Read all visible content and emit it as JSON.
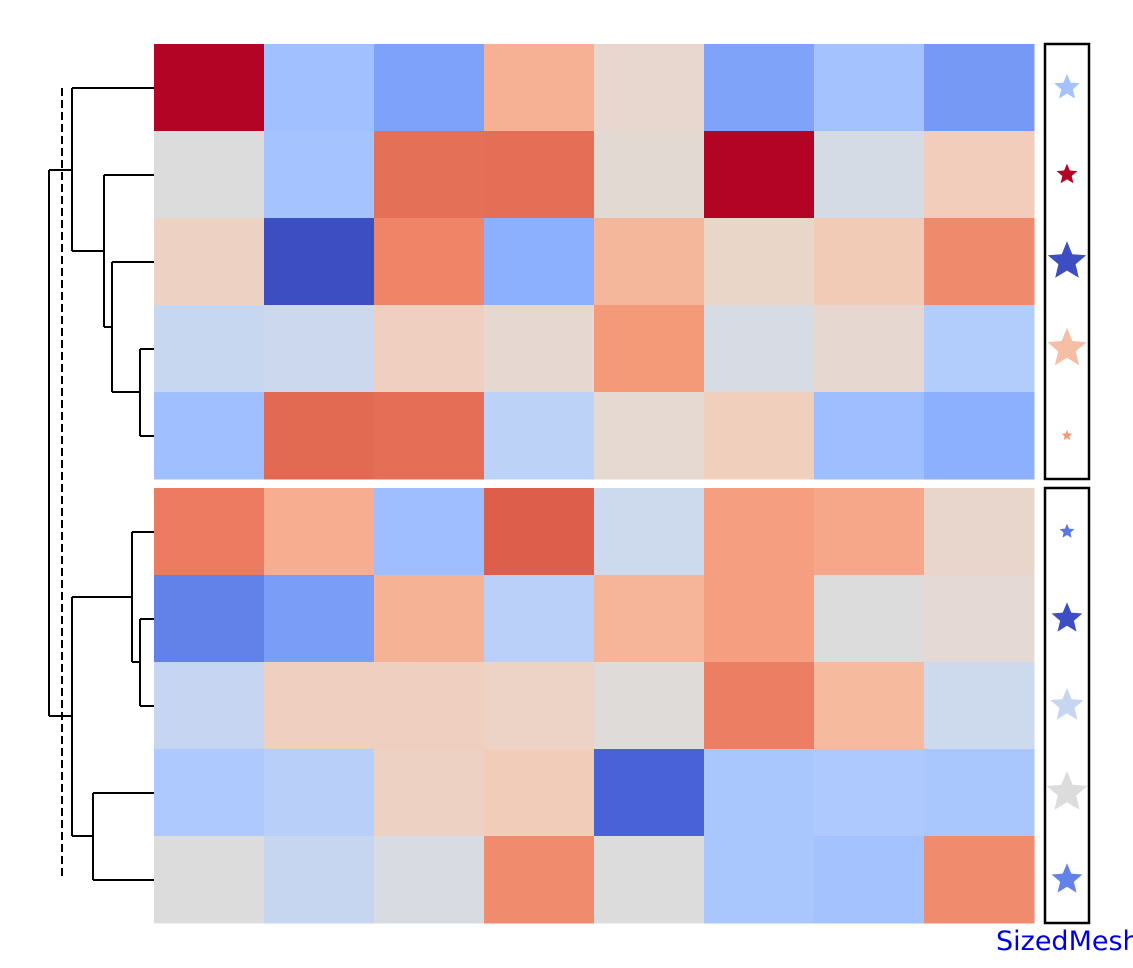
{
  "chart_data": {
    "type": "heatmap",
    "colormap": "coolwarm",
    "dendrogram_position": "left",
    "row_groups": [
      5,
      5
    ],
    "footer_label": "SizedMesh",
    "colors": {
      "heatmap": [
        [
          "#b40426",
          "#a1c0ff",
          "#7ea1fa",
          "#f6b194",
          "#e8d7cf",
          "#80a3fa",
          "#a3c2fe",
          "#7699f6"
        ],
        [
          "#dddcdc",
          "#a5c3fe",
          "#e57058",
          "#e46e56",
          "#e3d9d3",
          "#b40426",
          "#d5dbe5",
          "#f2cdbb"
        ],
        [
          "#edd1c2",
          "#3c4ec2",
          "#ef8566",
          "#8caffe",
          "#f5b79c",
          "#ead5c9",
          "#f2cbb7",
          "#f08a6c"
        ],
        [
          "#c8d7f0",
          "#cbd8ee",
          "#efd0c0",
          "#e6d8d0",
          "#f59a78",
          "#d7dce4",
          "#e6d8d0",
          "#b2ccfb"
        ],
        [
          "#9fbfff",
          "#e26952",
          "#e46e56",
          "#bcd2f7",
          "#e5d9d2",
          "#f0cfbd",
          "#9ebeff",
          "#8caffe"
        ],
        [
          "#ec7b61",
          "#f6ad90",
          "#9ebeff",
          "#dd5e4b",
          "#cdd9ec",
          "#f59f80",
          "#f6a78a",
          "#e8d6cd"
        ],
        [
          "#6282ea",
          "#7a9df8",
          "#f6b294",
          "#bad0f8",
          "#f6b598",
          "#f59f80",
          "#dcdcdc",
          "#e4d9d5"
        ],
        [
          "#c5d5f2",
          "#efd0c0",
          "#efd0c0",
          "#ecd3c6",
          "#dfdbd9",
          "#ec7f63",
          "#f6bb9f",
          "#cdd9ec"
        ],
        [
          "#adc9fd",
          "#b7cff9",
          "#edd2c3",
          "#f1ccb8",
          "#4a62d7",
          "#a9c6fd",
          "#adc9fd",
          "#a9c6fd"
        ],
        [
          "#dcdcdc",
          "#c6d6f1",
          "#d8dce2",
          "#f08b6e",
          "#dcdcdc",
          "#a9c6fd",
          "#a3c2fe",
          "#f08b6e"
        ]
      ],
      "stars": [
        "#a3c2fe",
        "#b40426",
        "#3c4ec2",
        "#f6bea4",
        "#f49a7b",
        "#5a78e4",
        "#3c4ec2",
        "#c5d5f2",
        "#dddcdc",
        "#6282ea"
      ]
    },
    "star_size": [
      0.48,
      0.36,
      0.78,
      0.8,
      0.12,
      0.22,
      0.6,
      0.66,
      0.84,
      0.6
    ]
  }
}
